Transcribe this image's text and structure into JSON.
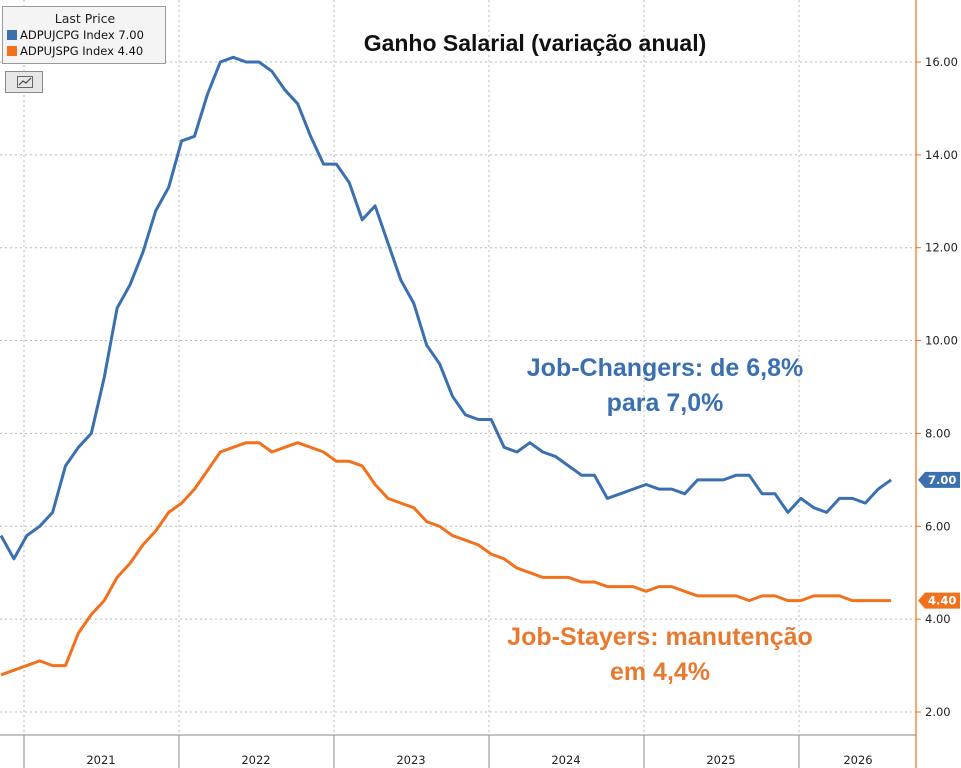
{
  "title": "Ganho Salarial (variação anual)",
  "legend": {
    "header": "Last Price",
    "entries": [
      {
        "label": "ADPUJCPG Index",
        "value": "7.00",
        "color": "#3a6fb0"
      },
      {
        "label": "ADPUJSPG Index",
        "value": "4.40",
        "color": "#f2711c"
      }
    ]
  },
  "annotations": {
    "changers_line1": "Job-Changers: de 6,8%",
    "changers_line2": "para 7,0%",
    "stayers_line1": "Job-Stayers: manutenção",
    "stayers_line2": "em 4,4%"
  },
  "chart_data": {
    "type": "line",
    "title": "Ganho Salarial (variação anual)",
    "x_start": "2020-10",
    "x_step": "monthly",
    "x_tick_labels": [
      "2021",
      "2022",
      "2023",
      "2024",
      "2025",
      "2026"
    ],
    "ylim": [
      2,
      16.8
    ],
    "y_ticks": [
      "2.00",
      "4.00",
      "6.00",
      "8.00",
      "10.00",
      "12.00",
      "14.00",
      "16.00"
    ],
    "y_axis_side": "right",
    "grid": true,
    "series": [
      {
        "name": "ADPUJCPG Index",
        "color": "#3a6fb0",
        "last_value_label": "7.00",
        "values": [
          5.8,
          5.3,
          5.8,
          6.0,
          6.3,
          7.3,
          7.7,
          8.0,
          9.2,
          10.7,
          11.2,
          11.9,
          12.8,
          13.3,
          14.3,
          14.4,
          15.3,
          16.0,
          16.1,
          16.0,
          16.0,
          15.8,
          15.4,
          15.1,
          14.4,
          13.8,
          13.8,
          13.4,
          12.6,
          12.9,
          12.1,
          11.3,
          10.8,
          9.9,
          9.5,
          8.8,
          8.4,
          8.3,
          8.3,
          7.7,
          7.6,
          7.8,
          7.6,
          7.5,
          7.3,
          7.1,
          7.1,
          6.6,
          6.7,
          6.8,
          6.9,
          6.8,
          6.8,
          6.7,
          7.0,
          7.0,
          7.0,
          7.1,
          7.1,
          6.7,
          6.7,
          6.3,
          6.6,
          6.4,
          6.3,
          6.6,
          6.6,
          6.5,
          6.8,
          7.0
        ]
      },
      {
        "name": "ADPUJSPG Index",
        "color": "#f2711c",
        "last_value_label": "4.40",
        "values": [
          2.8,
          2.9,
          3.0,
          3.1,
          3.0,
          3.0,
          3.7,
          4.1,
          4.4,
          4.9,
          5.2,
          5.6,
          5.9,
          6.3,
          6.5,
          6.8,
          7.2,
          7.6,
          7.7,
          7.8,
          7.8,
          7.6,
          7.7,
          7.8,
          7.7,
          7.6,
          7.4,
          7.4,
          7.3,
          6.9,
          6.6,
          6.5,
          6.4,
          6.1,
          6.0,
          5.8,
          5.7,
          5.6,
          5.4,
          5.3,
          5.1,
          5.0,
          4.9,
          4.9,
          4.9,
          4.8,
          4.8,
          4.7,
          4.7,
          4.7,
          4.6,
          4.7,
          4.7,
          4.6,
          4.5,
          4.5,
          4.5,
          4.5,
          4.4,
          4.5,
          4.5,
          4.4,
          4.4,
          4.5,
          4.5,
          4.5,
          4.4,
          4.4,
          4.4,
          4.4
        ]
      }
    ]
  }
}
